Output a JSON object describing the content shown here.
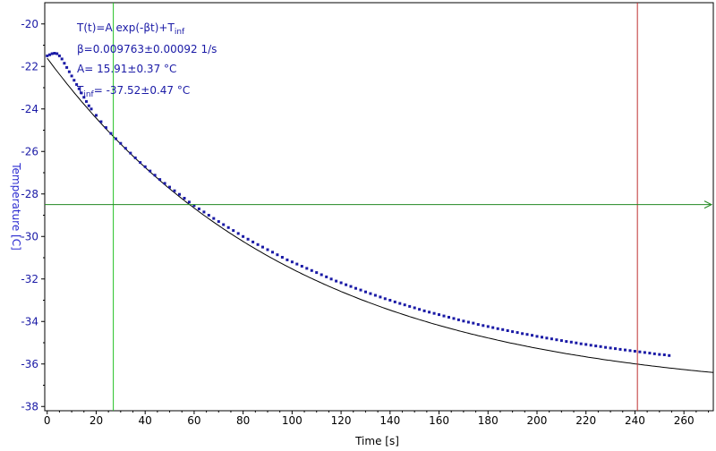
{
  "chart_data": {
    "type": "scatter",
    "xlabel": "Time [s]",
    "ylabel": "Temperature [C]",
    "xlim": [
      -1,
      272
    ],
    "ylim": [
      -38.2,
      -19.0
    ],
    "xticks": [
      0,
      20,
      40,
      60,
      80,
      100,
      120,
      140,
      160,
      180,
      200,
      220,
      240,
      260
    ],
    "yticks": [
      -20,
      -22,
      -24,
      -26,
      -28,
      -30,
      -32,
      -34,
      -36,
      -38
    ],
    "grid": false,
    "colors": {
      "points": "#1a1aa6",
      "fit_line": "#000000",
      "ylabel_color": "#2a2ad0",
      "vertical_cursor_left": "#22c022",
      "vertical_cursor_right": "#c03030",
      "horizontal_cursor": "#228822"
    },
    "annotation": {
      "line1_main": "T(t)=A exp(-βt)+T",
      "line1_sub": "inf",
      "line2": "β=0.009763±0.00092 1/s",
      "line3": "A= 15.91±0.37 °C",
      "line4_main": "T",
      "line4_sub": "inf",
      "line4_rest": "= -37.52±0.47 °C"
    },
    "fit": {
      "formula": "T(t)=A exp(-βt)+Tinf",
      "A": 15.91,
      "beta": 0.009763,
      "Tinf": -37.52,
      "x_range": [
        0,
        272
      ]
    },
    "cursors": {
      "vertical_x": [
        27,
        241
      ],
      "horizontal_y": -28.5
    },
    "series": [
      {
        "points": [
          [
            0,
            -21.5
          ],
          [
            1,
            -21.45
          ],
          [
            2,
            -21.4
          ],
          [
            3,
            -21.38
          ],
          [
            4,
            -21.4
          ],
          [
            5,
            -21.5
          ],
          [
            6,
            -21.65
          ],
          [
            7,
            -21.85
          ],
          [
            8,
            -22.05
          ],
          [
            9,
            -22.25
          ],
          [
            10,
            -22.45
          ],
          [
            11,
            -22.65
          ],
          [
            12,
            -22.85
          ],
          [
            13,
            -23.05
          ],
          [
            14,
            -23.25
          ],
          [
            15,
            -23.45
          ],
          [
            16,
            -23.65
          ],
          [
            17,
            -23.85
          ],
          [
            18,
            -24.0
          ],
          [
            20,
            -24.3
          ],
          [
            22,
            -24.6
          ],
          [
            24,
            -24.88
          ],
          [
            26,
            -25.15
          ],
          [
            28,
            -25.4
          ],
          [
            30,
            -25.62
          ],
          [
            32,
            -25.85
          ],
          [
            34,
            -26.08
          ],
          [
            36,
            -26.3
          ],
          [
            38,
            -26.52
          ],
          [
            40,
            -26.72
          ],
          [
            42,
            -26.92
          ],
          [
            44,
            -27.12
          ],
          [
            46,
            -27.32
          ],
          [
            48,
            -27.5
          ],
          [
            50,
            -27.68
          ],
          [
            52,
            -27.85
          ],
          [
            54,
            -28.02
          ],
          [
            56,
            -28.2
          ],
          [
            58,
            -28.38
          ],
          [
            60,
            -28.55
          ],
          [
            62,
            -28.7
          ],
          [
            64,
            -28.85
          ],
          [
            66,
            -29.0
          ],
          [
            68,
            -29.15
          ],
          [
            70,
            -29.3
          ],
          [
            72,
            -29.44
          ],
          [
            74,
            -29.58
          ],
          [
            76,
            -29.72
          ],
          [
            78,
            -29.86
          ],
          [
            80,
            -30.0
          ],
          [
            82,
            -30.13
          ],
          [
            84,
            -30.26
          ],
          [
            86,
            -30.38
          ],
          [
            88,
            -30.5
          ],
          [
            90,
            -30.62
          ],
          [
            92,
            -30.74
          ],
          [
            94,
            -30.86
          ],
          [
            96,
            -30.98
          ],
          [
            98,
            -31.1
          ],
          [
            100,
            -31.2
          ],
          [
            102,
            -31.3
          ],
          [
            104,
            -31.4
          ],
          [
            106,
            -31.5
          ],
          [
            108,
            -31.6
          ],
          [
            110,
            -31.7
          ],
          [
            112,
            -31.8
          ],
          [
            114,
            -31.9
          ],
          [
            116,
            -32.0
          ],
          [
            118,
            -32.1
          ],
          [
            120,
            -32.18
          ],
          [
            122,
            -32.27
          ],
          [
            124,
            -32.35
          ],
          [
            126,
            -32.44
          ],
          [
            128,
            -32.52
          ],
          [
            130,
            -32.61
          ],
          [
            132,
            -32.69
          ],
          [
            134,
            -32.77
          ],
          [
            136,
            -32.85
          ],
          [
            138,
            -32.93
          ],
          [
            140,
            -33.0
          ],
          [
            142,
            -33.08
          ],
          [
            144,
            -33.15
          ],
          [
            146,
            -33.22
          ],
          [
            148,
            -33.29
          ],
          [
            150,
            -33.36
          ],
          [
            152,
            -33.43
          ],
          [
            154,
            -33.5
          ],
          [
            156,
            -33.56
          ],
          [
            158,
            -33.62
          ],
          [
            160,
            -33.68
          ],
          [
            162,
            -33.74
          ],
          [
            164,
            -33.8
          ],
          [
            166,
            -33.86
          ],
          [
            168,
            -33.92
          ],
          [
            170,
            -33.98
          ],
          [
            172,
            -34.03
          ],
          [
            174,
            -34.08
          ],
          [
            176,
            -34.14
          ],
          [
            178,
            -34.19
          ],
          [
            180,
            -34.24
          ],
          [
            182,
            -34.29
          ],
          [
            184,
            -34.34
          ],
          [
            186,
            -34.38
          ],
          [
            188,
            -34.43
          ],
          [
            190,
            -34.48
          ],
          [
            192,
            -34.52
          ],
          [
            194,
            -34.57
          ],
          [
            196,
            -34.61
          ],
          [
            198,
            -34.65
          ],
          [
            200,
            -34.7
          ],
          [
            202,
            -34.74
          ],
          [
            204,
            -34.78
          ],
          [
            206,
            -34.82
          ],
          [
            208,
            -34.86
          ],
          [
            210,
            -34.9
          ],
          [
            212,
            -34.94
          ],
          [
            214,
            -34.97
          ],
          [
            216,
            -35.01
          ],
          [
            218,
            -35.05
          ],
          [
            220,
            -35.08
          ],
          [
            222,
            -35.12
          ],
          [
            224,
            -35.15
          ],
          [
            226,
            -35.18
          ],
          [
            228,
            -35.22
          ],
          [
            230,
            -35.25
          ],
          [
            232,
            -35.28
          ],
          [
            234,
            -35.31
          ],
          [
            236,
            -35.34
          ],
          [
            238,
            -35.37
          ],
          [
            240,
            -35.4
          ],
          [
            242,
            -35.43
          ],
          [
            244,
            -35.46
          ],
          [
            246,
            -35.49
          ],
          [
            248,
            -35.52
          ],
          [
            250,
            -35.55
          ],
          [
            252,
            -35.57
          ],
          [
            254,
            -35.6
          ]
        ]
      }
    ]
  }
}
